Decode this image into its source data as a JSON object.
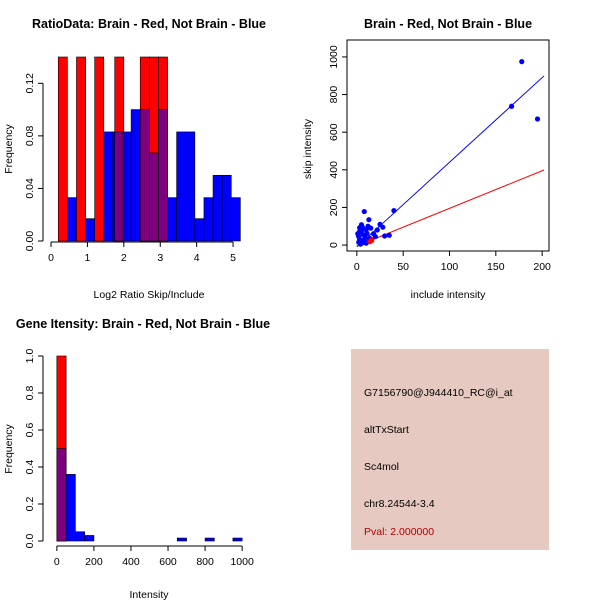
{
  "chart_data": [
    {
      "id": "ratio",
      "type": "bar",
      "title": "RatioData: Brain - Red, Not Brain - Blue",
      "xlabel": "Log2 Ratio Skip/Include",
      "ylabel": "Frequency",
      "xlim": [
        0,
        5.3
      ],
      "ylim": [
        0,
        0.14
      ],
      "xticks": [
        0,
        1,
        2,
        3,
        4,
        5
      ],
      "yticks": [
        0.0,
        0.04,
        0.08,
        0.12
      ],
      "ytick_labels": [
        "0.00",
        "0.04",
        "0.08",
        "0.12"
      ],
      "series": [
        {
          "name": "Not Brain",
          "color": "#0000ff",
          "bins": [
            [
              0.25,
              0.45,
              0.0
            ],
            [
              0.45,
              0.7,
              0.033
            ],
            [
              0.7,
              0.95,
              0.0
            ],
            [
              0.95,
              1.2,
              0.017
            ],
            [
              1.2,
              1.45,
              0.0
            ],
            [
              1.45,
              1.7,
              0.083
            ],
            [
              1.7,
              1.95,
              0.083
            ],
            [
              1.95,
              2.2,
              0.083
            ],
            [
              2.2,
              2.45,
              0.1
            ],
            [
              2.45,
              2.7,
              0.1
            ],
            [
              2.7,
              2.95,
              0.067
            ],
            [
              2.95,
              3.2,
              0.1
            ],
            [
              3.2,
              3.45,
              0.033
            ],
            [
              3.45,
              3.7,
              0.083
            ],
            [
              3.7,
              3.95,
              0.083
            ],
            [
              3.95,
              4.2,
              0.017
            ],
            [
              4.2,
              4.45,
              0.033
            ],
            [
              4.45,
              4.7,
              0.05
            ],
            [
              4.7,
              4.95,
              0.05
            ],
            [
              4.95,
              5.2,
              0.033
            ]
          ]
        },
        {
          "name": "Brain",
          "color": "#ff0000",
          "bins": [
            [
              0.2,
              0.45,
              0.14
            ],
            [
              0.7,
              0.95,
              0.14
            ],
            [
              1.2,
              1.45,
              0.14
            ],
            [
              1.75,
              2.0,
              0.14
            ],
            [
              2.45,
              2.7,
              0.14
            ],
            [
              2.7,
              2.95,
              0.14
            ],
            [
              2.95,
              3.2,
              0.14
            ]
          ]
        }
      ]
    },
    {
      "id": "scatter",
      "type": "scatter",
      "title": "Brain - Red, Not Brain - Blue",
      "xlabel": "include intensity",
      "ylabel": "skip intensity",
      "xlim": [
        -2,
        202
      ],
      "ylim": [
        -5,
        1005
      ],
      "xticks": [
        0,
        50,
        100,
        150,
        200
      ],
      "yticks": [
        0,
        200,
        400,
        600,
        800,
        1000
      ],
      "series": [
        {
          "name": "Not Brain",
          "color": "#0000ff",
          "points": [
            [
              178,
              975
            ],
            [
              167,
              738
            ],
            [
              195,
              670
            ],
            [
              40,
              183
            ],
            [
              8,
              178
            ],
            [
              13,
              135
            ],
            [
              5,
              108
            ],
            [
              3,
              92
            ],
            [
              6,
              95
            ],
            [
              10,
              82
            ],
            [
              4,
              70
            ],
            [
              12,
              100
            ],
            [
              15,
              90
            ],
            [
              2,
              45
            ],
            [
              7,
              55
            ],
            [
              9,
              40
            ],
            [
              11,
              62
            ],
            [
              3,
              30
            ],
            [
              5,
              25
            ],
            [
              8,
              20
            ],
            [
              14,
              35
            ],
            [
              18,
              60
            ],
            [
              22,
              80
            ],
            [
              25,
              110
            ],
            [
              28,
              95
            ],
            [
              30,
              48
            ],
            [
              35,
              52
            ],
            [
              20,
              45
            ],
            [
              16,
              28
            ],
            [
              6,
              12
            ],
            [
              2,
              15
            ],
            [
              4,
              5
            ],
            [
              10,
              10
            ],
            [
              12,
              18
            ],
            [
              1,
              60
            ],
            [
              3,
              72
            ],
            [
              7,
              84
            ]
          ]
        },
        {
          "name": "Brain",
          "color": "#ff0000",
          "points": [
            [
              15,
              22
            ],
            [
              14,
              18
            ],
            [
              16,
              25
            ]
          ]
        }
      ],
      "fit_lines": [
        {
          "name": "Not Brain fit",
          "color": "#0000ff",
          "intercept": -10,
          "slope": 4.5
        },
        {
          "name": "Brain fit",
          "color": "#ff0000",
          "intercept": -5,
          "slope": 2.0
        }
      ]
    },
    {
      "id": "intensity",
      "type": "bar",
      "title": "Gene Itensity: Brain - Red, Not Brain - Blue",
      "xlabel": "Intensity",
      "ylabel": "Frequency",
      "xlim": [
        -10,
        1010
      ],
      "ylim": [
        0,
        1.0
      ],
      "xticks": [
        0,
        200,
        400,
        600,
        800,
        1000
      ],
      "yticks": [
        0.0,
        0.2,
        0.4,
        0.6,
        0.8,
        1.0
      ],
      "ytick_labels": [
        "0.0",
        "0.2",
        "0.4",
        "0.6",
        "0.8",
        "1.0"
      ],
      "series": [
        {
          "name": "Not Brain",
          "color": "#0000ff",
          "bins": [
            [
              0,
              50,
              0.5
            ],
            [
              50,
              100,
              0.36
            ],
            [
              100,
              150,
              0.05
            ],
            [
              150,
              200,
              0.03
            ],
            [
              650,
              700,
              0.016
            ],
            [
              800,
              850,
              0.016
            ],
            [
              950,
              1000,
              0.016
            ]
          ]
        },
        {
          "name": "Brain",
          "color": "#ff0000",
          "bins": [
            [
              0,
              50,
              1.0
            ]
          ]
        }
      ]
    }
  ],
  "info": {
    "probe": "G7156790@J944410_RC@i_at",
    "event": "altTxStart",
    "gene": "Sc4mol",
    "location": "chr8.24544-3.4",
    "pval": "Pval: 2.000000"
  },
  "colors": {
    "brain": "#ff0000",
    "not_brain": "#0000ff",
    "overlap": "#7f007f",
    "info_bg": "#e6c9c0"
  }
}
